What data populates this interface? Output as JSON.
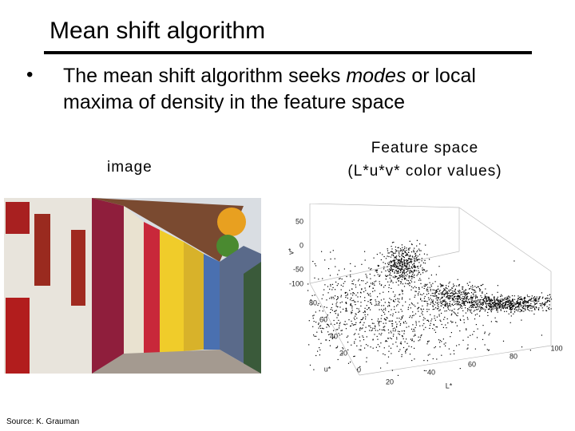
{
  "slide": {
    "title": "Mean shift algorithm",
    "bullet": {
      "marker": "•",
      "text_parts": [
        "The mean shift algorithm seeks ",
        "modes",
        " or local maxima of density in the feature space"
      ]
    },
    "image_caption": "image",
    "feature_caption": [
      "Feature space",
      "(L*u*v* color values)"
    ],
    "source": "Source: K. Grauman"
  },
  "plot": {
    "v_label": "v*",
    "v_ticks": [
      "50",
      "0",
      "-50",
      "-100"
    ],
    "u_label": "u*",
    "u_ticks": [
      "80",
      "60",
      "40",
      "20",
      "0"
    ],
    "l_label": "L*",
    "l_ticks": [
      "20",
      "40",
      "60",
      "80",
      "100"
    ]
  }
}
